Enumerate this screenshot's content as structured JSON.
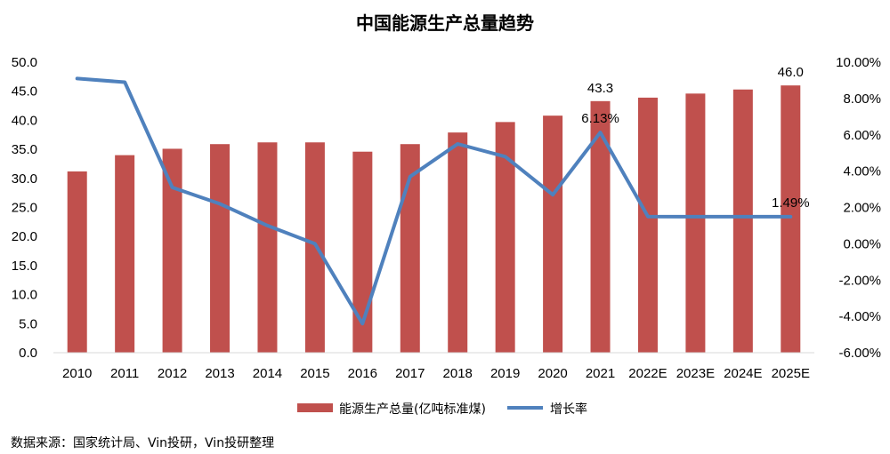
{
  "chart_data": {
    "type": "bar",
    "title": "中国能源生产总量趋势",
    "categories": [
      "2010",
      "2011",
      "2012",
      "2013",
      "2014",
      "2015",
      "2016",
      "2017",
      "2018",
      "2019",
      "2020",
      "2021",
      "2022E",
      "2023E",
      "2024E",
      "2025E"
    ],
    "series": [
      {
        "name": "能源生产总量(亿吨标准煤)",
        "type": "bar",
        "axis": "left",
        "color": "#c0504d",
        "values": [
          31.2,
          34.0,
          35.1,
          35.9,
          36.2,
          36.2,
          34.6,
          35.9,
          37.9,
          39.7,
          40.8,
          43.3,
          43.9,
          44.6,
          45.3,
          46.0
        ]
      },
      {
        "name": "增长率",
        "type": "line",
        "axis": "right",
        "color": "#4f81bd",
        "values": [
          9.1,
          8.9,
          3.1,
          2.2,
          1.0,
          0.0,
          -4.4,
          3.7,
          5.5,
          4.8,
          2.7,
          6.13,
          1.5,
          1.49,
          1.49,
          1.49
        ]
      }
    ],
    "left_axis": {
      "ylim": [
        0,
        50
      ],
      "ticks": [
        "0.0",
        "5.0",
        "10.0",
        "15.0",
        "20.0",
        "25.0",
        "30.0",
        "35.0",
        "40.0",
        "45.0",
        "50.0"
      ]
    },
    "right_axis": {
      "ylim": [
        -6,
        10
      ],
      "ticks": [
        "-6.00%",
        "-4.00%",
        "-2.00%",
        "0.00%",
        "2.00%",
        "4.00%",
        "6.00%",
        "8.00%",
        "10.00%"
      ]
    },
    "data_labels": [
      {
        "series": 0,
        "index": 11,
        "text": "43.3"
      },
      {
        "series": 0,
        "index": 15,
        "text": "46.0"
      },
      {
        "series": 1,
        "index": 11,
        "text": "6.13%"
      },
      {
        "series": 1,
        "index": 15,
        "text": "1.49%"
      }
    ],
    "legend_position": "bottom",
    "grid": false
  },
  "source_note": "数据来源：国家统计局、Vin投研，Vin投研整理"
}
